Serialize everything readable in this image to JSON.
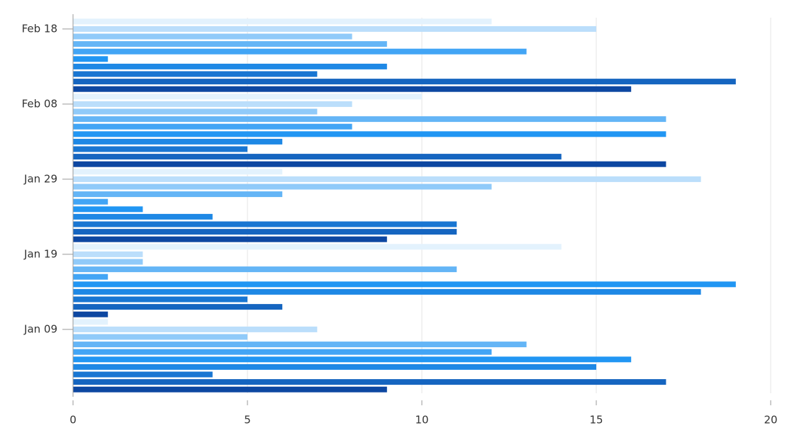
{
  "chart_data": {
    "type": "barh",
    "categories": [
      null,
      null,
      null,
      null,
      null,
      null,
      null,
      null,
      "Jan 09",
      null,
      null,
      null,
      null,
      null,
      null,
      null,
      null,
      null,
      "Jan 19",
      null,
      null,
      null,
      null,
      null,
      null,
      null,
      null,
      null,
      "Jan 29",
      null,
      null,
      null,
      null,
      null,
      null,
      null,
      null,
      null,
      "Feb 08",
      null,
      null,
      null,
      null,
      null,
      null,
      null,
      null,
      null,
      "Feb 18",
      null
    ],
    "values": [
      9,
      17,
      4,
      15,
      16,
      12,
      13,
      5,
      7,
      1,
      1,
      6,
      5,
      18,
      19,
      1,
      11,
      2,
      2,
      14,
      9,
      11,
      11,
      4,
      2,
      1,
      6,
      12,
      18,
      6,
      17,
      14,
      5,
      6,
      17,
      8,
      17,
      7,
      8,
      10,
      16,
      19,
      7,
      9,
      1,
      13,
      9,
      8,
      15,
      12
    ],
    "colors": [
      "#0d47a1",
      "#1565c0",
      "#1976d2",
      "#1e88e5",
      "#2196f3",
      "#42a5f5",
      "#64b5f6",
      "#90caf9",
      "#bbdefb",
      "#e3f2fd"
    ],
    "xlim": [
      0,
      20
    ],
    "xticks": [
      0,
      5,
      10,
      15,
      20
    ],
    "grid": true
  }
}
